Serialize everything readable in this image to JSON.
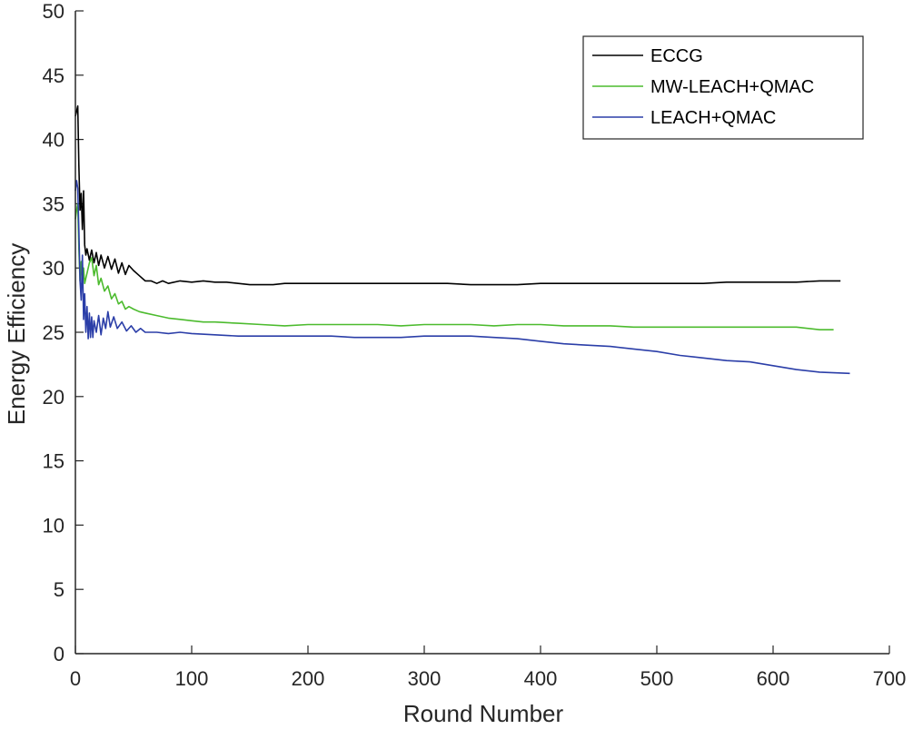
{
  "chart_data": {
    "type": "line",
    "title": "",
    "xlabel": "Round Number",
    "ylabel": "Energy Efficiency",
    "xlim": [
      0,
      700
    ],
    "ylim": [
      0,
      50
    ],
    "xticks": [
      0,
      100,
      200,
      300,
      400,
      500,
      600,
      700
    ],
    "yticks": [
      0,
      5,
      10,
      15,
      20,
      25,
      30,
      35,
      40,
      45,
      50
    ],
    "grid": false,
    "legend_position": "top-right",
    "series": [
      {
        "name": "ECCG",
        "color": "#000000",
        "x": [
          0,
          1,
          2,
          3,
          4,
          5,
          6,
          7,
          8,
          9,
          10,
          12,
          14,
          16,
          18,
          20,
          22,
          25,
          28,
          31,
          34,
          37,
          40,
          43,
          46,
          50,
          55,
          60,
          65,
          70,
          75,
          80,
          90,
          100,
          110,
          120,
          130,
          140,
          150,
          160,
          170,
          180,
          200,
          220,
          240,
          260,
          280,
          300,
          320,
          340,
          360,
          380,
          400,
          420,
          440,
          460,
          480,
          500,
          520,
          540,
          560,
          580,
          600,
          620,
          640,
          658
        ],
        "y": [
          41.8,
          42.2,
          42.6,
          38.0,
          34.5,
          35.8,
          33.0,
          36.0,
          31.8,
          31.0,
          31.5,
          30.6,
          31.4,
          30.4,
          31.2,
          30.2,
          31.0,
          30.0,
          30.9,
          29.9,
          30.7,
          29.6,
          30.4,
          29.5,
          30.2,
          29.8,
          29.4,
          29.0,
          29.0,
          28.8,
          29.0,
          28.8,
          29.0,
          28.9,
          29.0,
          28.9,
          28.9,
          28.8,
          28.7,
          28.7,
          28.7,
          28.8,
          28.8,
          28.8,
          28.8,
          28.8,
          28.8,
          28.8,
          28.8,
          28.7,
          28.7,
          28.7,
          28.8,
          28.8,
          28.8,
          28.8,
          28.8,
          28.8,
          28.8,
          28.8,
          28.9,
          28.9,
          28.9,
          28.9,
          29.0,
          29.0
        ]
      },
      {
        "name": "MW-LEACH+QMAC",
        "color": "#4cbb2e",
        "x": [
          0,
          1,
          2,
          3,
          4,
          5,
          6,
          7,
          8,
          9,
          10,
          12,
          14,
          16,
          18,
          20,
          22,
          25,
          28,
          31,
          34,
          37,
          40,
          43,
          46,
          50,
          55,
          60,
          70,
          80,
          90,
          100,
          110,
          120,
          140,
          160,
          180,
          200,
          220,
          240,
          260,
          280,
          300,
          320,
          340,
          360,
          380,
          400,
          420,
          440,
          460,
          480,
          500,
          520,
          540,
          560,
          580,
          600,
          620,
          640,
          652
        ],
        "y": [
          33.8,
          34.5,
          35.0,
          31.5,
          29.0,
          30.5,
          28.8,
          30.0,
          28.8,
          29.2,
          29.6,
          30.4,
          30.8,
          29.4,
          30.2,
          28.7,
          29.2,
          28.2,
          28.6,
          27.6,
          28.0,
          27.2,
          27.4,
          26.8,
          27.0,
          26.8,
          26.6,
          26.5,
          26.3,
          26.1,
          26.0,
          25.9,
          25.8,
          25.8,
          25.7,
          25.6,
          25.5,
          25.6,
          25.6,
          25.6,
          25.6,
          25.5,
          25.6,
          25.6,
          25.6,
          25.5,
          25.6,
          25.6,
          25.5,
          25.5,
          25.5,
          25.4,
          25.4,
          25.4,
          25.4,
          25.4,
          25.4,
          25.4,
          25.4,
          25.2,
          25.2
        ]
      },
      {
        "name": "LEACH+QMAC",
        "color": "#2b3ea8",
        "x": [
          0,
          1,
          2,
          3,
          4,
          5,
          6,
          7,
          8,
          9,
          10,
          11,
          12,
          13,
          14,
          15,
          16,
          18,
          20,
          22,
          24,
          26,
          28,
          30,
          33,
          36,
          40,
          44,
          48,
          52,
          56,
          60,
          70,
          80,
          90,
          100,
          120,
          140,
          160,
          180,
          200,
          220,
          240,
          260,
          280,
          300,
          320,
          340,
          360,
          380,
          400,
          420,
          440,
          460,
          480,
          500,
          520,
          540,
          560,
          580,
          600,
          620,
          640,
          666
        ],
        "y": [
          36.0,
          36.8,
          36.2,
          33.0,
          29.0,
          27.5,
          31.0,
          26.0,
          28.0,
          25.0,
          27.0,
          24.5,
          26.5,
          24.6,
          26.2,
          24.6,
          25.9,
          25.0,
          26.3,
          24.8,
          26.1,
          25.3,
          26.6,
          25.4,
          26.2,
          25.3,
          25.8,
          25.1,
          25.5,
          25.0,
          25.3,
          25.0,
          25.0,
          24.9,
          25.0,
          24.9,
          24.8,
          24.7,
          24.7,
          24.7,
          24.7,
          24.7,
          24.6,
          24.6,
          24.6,
          24.7,
          24.7,
          24.7,
          24.6,
          24.5,
          24.3,
          24.1,
          24.0,
          23.9,
          23.7,
          23.5,
          23.2,
          23.0,
          22.8,
          22.7,
          22.4,
          22.1,
          21.9,
          21.8
        ]
      }
    ]
  }
}
